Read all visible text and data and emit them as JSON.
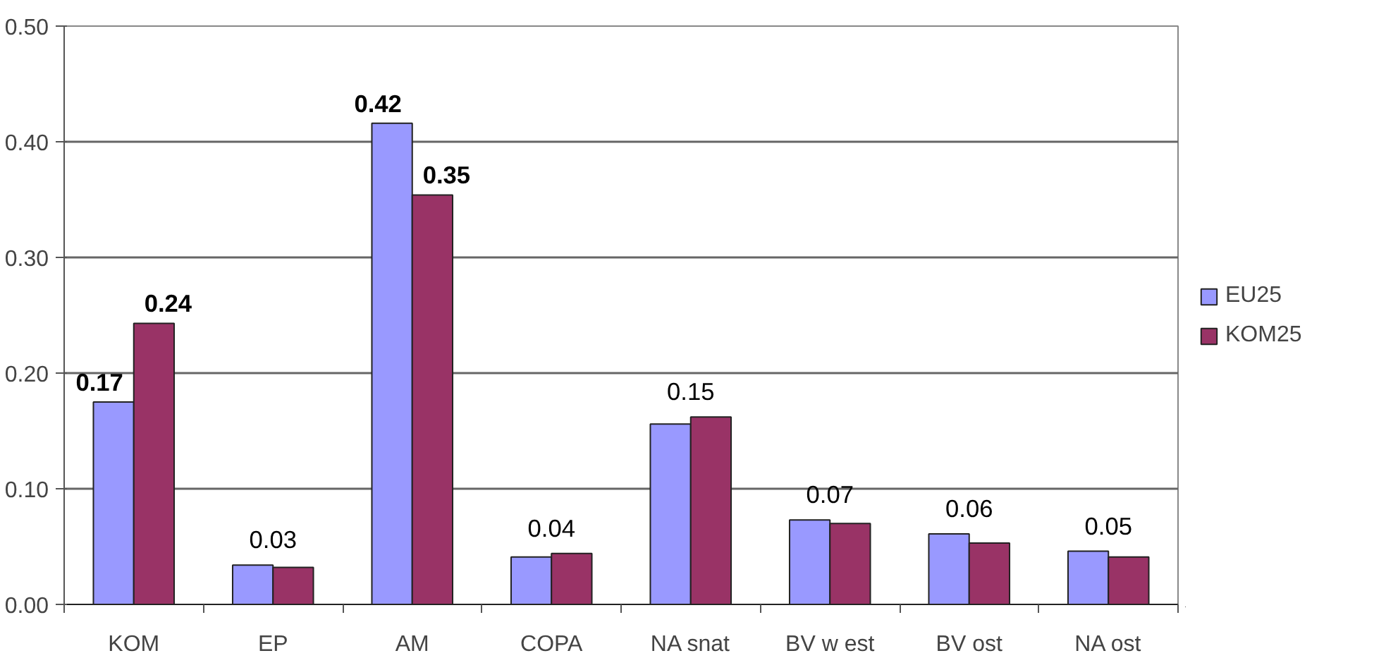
{
  "chart_data": {
    "type": "bar",
    "categories": [
      "KOM",
      "EP",
      "AM",
      "COPA",
      "NA snat",
      "BV w est",
      "BV ost",
      "NA ost"
    ],
    "series": [
      {
        "name": "EU25",
        "color": "#9999ff",
        "values": [
          0.175,
          0.034,
          0.416,
          0.041,
          0.156,
          0.073,
          0.061,
          0.046
        ],
        "value_labels": [
          "0.17",
          null,
          "0.42",
          null,
          null,
          null,
          null,
          null
        ]
      },
      {
        "name": "KOM25",
        "color": "#993366",
        "values": [
          0.243,
          0.032,
          0.354,
          0.044,
          0.162,
          0.07,
          0.053,
          0.041
        ],
        "value_labels": [
          "0.24",
          null,
          "0.35",
          null,
          null,
          null,
          null,
          null
        ]
      }
    ],
    "annotations": [
      {
        "text": "0.03",
        "x": "EP",
        "y": 0.034
      },
      {
        "text": "0.04",
        "x": "COPA",
        "y": 0.044
      },
      {
        "text": "0.15",
        "x": "NA snat",
        "y": 0.162
      },
      {
        "text": "0.07",
        "x": "BV w est",
        "y": 0.073
      },
      {
        "text": "0.06",
        "x": "BV ost",
        "y": 0.061
      },
      {
        "text": "0.05",
        "x": "NA ost",
        "y": 0.046
      }
    ],
    "ylim": [
      0,
      0.5
    ],
    "yticks": [
      {
        "value": 0,
        "label": "0.00"
      },
      {
        "value": 0.1,
        "label": "0.10"
      },
      {
        "value": 0.2,
        "label": "0.20"
      },
      {
        "value": 0.3,
        "label": "0.30"
      },
      {
        "value": 0.4,
        "label": "0.40"
      },
      {
        "value": 0.5,
        "label": "0.50"
      }
    ],
    "grid": "y",
    "legend": "right"
  }
}
